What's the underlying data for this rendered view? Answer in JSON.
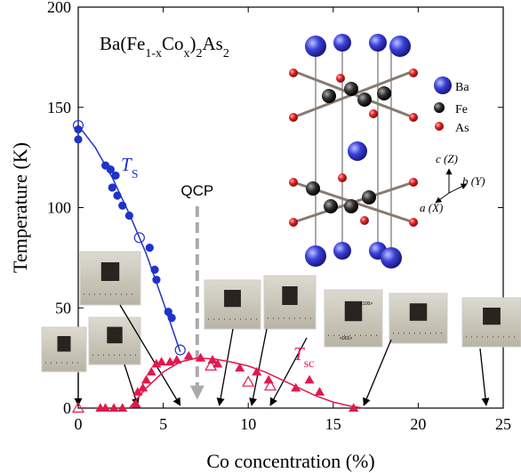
{
  "chart_data": {
    "type": "scatter",
    "x_label": "Co concentration (%)",
    "y_label": "Temperature (K)",
    "xlim": [
      0,
      25
    ],
    "xticks": [
      0,
      5,
      10,
      15,
      20,
      25
    ],
    "ylim": [
      0,
      200
    ],
    "yticks": [
      0,
      50,
      100,
      150,
      200
    ],
    "grid": false,
    "series": [
      {
        "color": "#1f33c8",
        "marker": "circle",
        "filled": true,
        "x": [
          0,
          0,
          1.6,
          1.9,
          2.0,
          2.2,
          2.3,
          2.6,
          3.0,
          4.2,
          4.5,
          4.6,
          5.3,
          5.5
        ],
        "values": [
          139,
          134,
          121,
          119,
          110,
          116,
          106,
          101,
          96,
          80,
          69,
          64,
          48,
          45
        ]
      },
      {
        "color": "#1f33c8",
        "marker": "circle",
        "filled": false,
        "x": [
          0,
          3.6,
          6.0
        ],
        "values": [
          141,
          85,
          29
        ]
      },
      {
        "color": "#1f33c8",
        "marker": "none",
        "line": true,
        "x": [
          0,
          1,
          2,
          3,
          4,
          5,
          6
        ],
        "values": [
          141,
          130,
          115,
          97,
          77,
          53,
          28
        ]
      },
      {
        "color": "#e3184c",
        "marker": "triangle",
        "filled": true,
        "x": [
          1.3,
          1.6,
          2.1,
          2.6,
          3.4,
          3.5,
          3.8,
          4.0,
          4.3,
          4.6,
          4.9,
          5.4,
          5.8,
          6.5,
          7.2,
          7.9,
          8.2,
          9.5,
          10.5,
          11.2,
          12.8,
          13.6,
          14.2,
          16.2
        ],
        "values": [
          0,
          0,
          0,
          0,
          2,
          8,
          10,
          14,
          18,
          22,
          23,
          23,
          24,
          26,
          25,
          24,
          22,
          20,
          18,
          14,
          10,
          14,
          8,
          0
        ]
      },
      {
        "color": "#e3184c",
        "marker": "triangle",
        "filled": false,
        "x": [
          0,
          7.8,
          10.0,
          11.3
        ],
        "values": [
          0,
          21,
          13,
          11
        ]
      },
      {
        "color": "#e3184c",
        "marker": "none",
        "line": true,
        "x": [
          3,
          4,
          5,
          6,
          7,
          8,
          9,
          10,
          11,
          12,
          13,
          14,
          15,
          16,
          16.8
        ],
        "values": [
          0,
          10,
          18,
          23,
          25,
          24.5,
          23,
          21,
          18,
          14,
          10,
          6,
          3,
          1,
          0
        ]
      }
    ],
    "formula": [
      {
        "text": "Ba(Fe"
      },
      {
        "text": "1-x",
        "sub": true
      },
      {
        "text": "Co"
      },
      {
        "text": "x",
        "sub": true
      },
      {
        "text": ")"
      },
      {
        "text": "2",
        "sub": true
      },
      {
        "text": "As"
      },
      {
        "text": "2",
        "sub": true
      }
    ],
    "ts_label": {
      "main": "T",
      "sub": "S"
    },
    "tsc_label": {
      "main": "T",
      "sub": "sc"
    },
    "qcp": {
      "label": "QCP",
      "x": 7
    },
    "sample_x": [
      0,
      3.5,
      6,
      8.3,
      10.2,
      11.3,
      16.8,
      24
    ],
    "inset": {
      "legend": [
        "Ba",
        "Fe",
        "As"
      ],
      "axes": [
        "c (Z)",
        "b (Y)",
        "a (X)"
      ]
    },
    "photo_labels": [
      "<100>",
      "<001>"
    ]
  }
}
